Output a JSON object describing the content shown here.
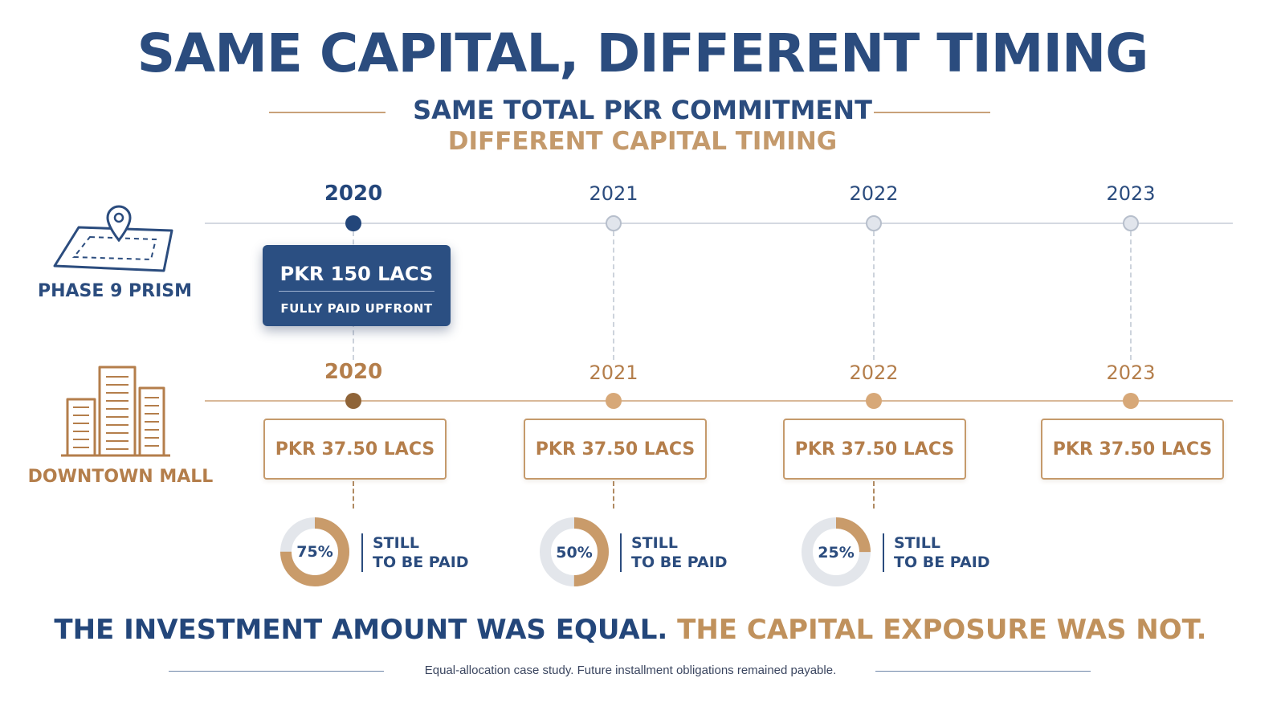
{
  "title": "SAME CAPITAL, DIFFERENT TIMING",
  "subtitle_line1": "SAME TOTAL PKR COMMITMENT",
  "subtitle_line2": "DIFFERENT CAPITAL TIMING",
  "phase9": {
    "label": "PHASE 9 PRISM",
    "icon": "map-pin-icon",
    "years": [
      "2020",
      "2021",
      "2022",
      "2023"
    ],
    "payment": {
      "amount": "PKR 150 LACS",
      "note": "FULLY PAID UPFRONT"
    }
  },
  "downtown": {
    "label": "DOWNTOWN MALL",
    "icon": "buildings-icon",
    "years": [
      "2020",
      "2021",
      "2022",
      "2023"
    ],
    "installments": [
      "PKR 37.50 LACS",
      "PKR 37.50 LACS",
      "PKR 37.50 LACS",
      "PKR 37.50 LACS"
    ],
    "remaining": [
      {
        "percent": 75,
        "label": "75%",
        "line1": "STILL",
        "line2": "TO BE PAID"
      },
      {
        "percent": 50,
        "label": "50%",
        "line1": "STILL",
        "line2": "TO BE PAID"
      },
      {
        "percent": 25,
        "label": "25%",
        "line1": "STILL",
        "line2": "TO BE PAID"
      }
    ]
  },
  "conclusion": {
    "part1": "THE INVESTMENT AMOUNT WAS EQUAL.",
    "part2": "THE CAPITAL EXPOSURE WAS NOT."
  },
  "footnote": "Equal-allocation case study. Future installment obligations remained payable.",
  "colors": {
    "navy": "#2b4c7e",
    "gold": "#c0915c",
    "donut_track": "#e3e6eb"
  }
}
